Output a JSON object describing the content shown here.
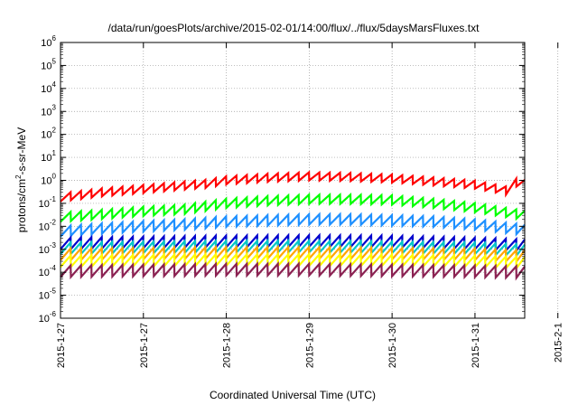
{
  "chart_data": {
    "type": "line",
    "title": "/data/run/goesPlots/archive/2015-02-01/14:00/flux/../flux/5daysMarsFluxes.txt",
    "xlabel": "Coordinated Universal Time (UTC)",
    "ylabel": "protons/cm²-s-sr-MeV",
    "ylabel_parts": {
      "before": "protons/cm",
      "sup": "2",
      "after": "-s-sr-MeV"
    },
    "yscale": "log",
    "ylim_exp": [
      -6,
      6
    ],
    "y_ticks": [
      {
        "base": "10",
        "exp": "6"
      },
      {
        "base": "10",
        "exp": "5"
      },
      {
        "base": "10",
        "exp": "4"
      },
      {
        "base": "10",
        "exp": "3"
      },
      {
        "base": "10",
        "exp": "2"
      },
      {
        "base": "10",
        "exp": "1"
      },
      {
        "base": "10",
        "exp": "0"
      },
      {
        "base": "10",
        "exp": "-1"
      },
      {
        "base": "10",
        "exp": "-2"
      },
      {
        "base": "10",
        "exp": "-3"
      },
      {
        "base": "10",
        "exp": "-4"
      },
      {
        "base": "10",
        "exp": "-5"
      },
      {
        "base": "10",
        "exp": "-6"
      }
    ],
    "x_ticks": [
      "2015-1-27",
      "2015-1-28",
      "2015-1-29",
      "2015-1-30",
      "2015-1-31",
      "2015-2-1"
    ],
    "xlim_days": [
      0,
      5.6
    ],
    "grid": true,
    "sawtooth_period_days": 0.125,
    "series": [
      {
        "color": "#ff0000",
        "lineWidth": 2.2,
        "x": [
          0,
          0.5,
          1.0,
          1.5,
          1.75,
          2.0,
          2.5,
          3.0,
          3.5,
          4.0,
          4.5,
          5.0,
          5.4,
          5.5,
          5.6
        ],
        "y": [
          0.18,
          0.3,
          0.42,
          0.6,
          0.7,
          1.0,
          1.3,
          1.5,
          1.4,
          1.2,
          0.9,
          0.65,
          0.35,
          0.8,
          0.7
        ],
        "amp": 0.35
      },
      {
        "color": "#00ff00",
        "lineWidth": 2.2,
        "x": [
          0,
          0.5,
          1.0,
          1.5,
          2.0,
          2.5,
          3.0,
          3.5,
          4.0,
          4.5,
          5.0,
          5.6
        ],
        "y": [
          0.025,
          0.033,
          0.045,
          0.055,
          0.1,
          0.13,
          0.15,
          0.15,
          0.14,
          0.1,
          0.065,
          0.03
        ],
        "amp": 0.4
      },
      {
        "color": "#1e90ff",
        "lineWidth": 2.2,
        "x": [
          0,
          0.5,
          1.0,
          1.5,
          2.0,
          2.5,
          3.0,
          3.5,
          4.0,
          4.5,
          5.0,
          5.6
        ],
        "y": [
          0.006,
          0.008,
          0.01,
          0.012,
          0.016,
          0.018,
          0.02,
          0.02,
          0.018,
          0.016,
          0.012,
          0.007
        ],
        "amp": 0.45
      },
      {
        "color": "#0000cd",
        "lineWidth": 2.2,
        "x": [
          0,
          1.0,
          2.0,
          3.0,
          4.0,
          5.0,
          5.6
        ],
        "y": [
          0.0018,
          0.002,
          0.0022,
          0.0023,
          0.0022,
          0.0018,
          0.0015
        ],
        "amp": 0.5
      },
      {
        "color": "#00c8c8",
        "lineWidth": 2.2,
        "x": [
          0,
          1.0,
          2.0,
          3.0,
          4.0,
          5.0,
          5.6
        ],
        "y": [
          0.0011,
          0.0012,
          0.0013,
          0.0013,
          0.0012,
          0.0011,
          0.0009
        ],
        "amp": 0.5
      },
      {
        "color": "#ffa500",
        "lineWidth": 2.2,
        "x": [
          0,
          1.0,
          2.0,
          3.0,
          4.0,
          5.0,
          5.6
        ],
        "y": [
          0.0006,
          0.00065,
          0.0007,
          0.0007,
          0.00065,
          0.0006,
          0.0005
        ],
        "amp": 0.5
      },
      {
        "color": "#ffff00",
        "lineWidth": 2.2,
        "x": [
          0,
          1.0,
          2.0,
          3.0,
          4.0,
          5.0,
          5.6
        ],
        "y": [
          0.0003,
          0.00032,
          0.00034,
          0.00034,
          0.00033,
          0.0003,
          0.00026
        ],
        "amp": 0.5
      },
      {
        "color": "#8b2252",
        "lineWidth": 2.2,
        "x": [
          0,
          1.0,
          2.0,
          3.0,
          4.0,
          5.0,
          5.6
        ],
        "y": [
          0.00011,
          0.00012,
          0.00013,
          0.00013,
          0.00012,
          0.00011,
          0.0001
        ],
        "amp": 0.5
      }
    ]
  }
}
